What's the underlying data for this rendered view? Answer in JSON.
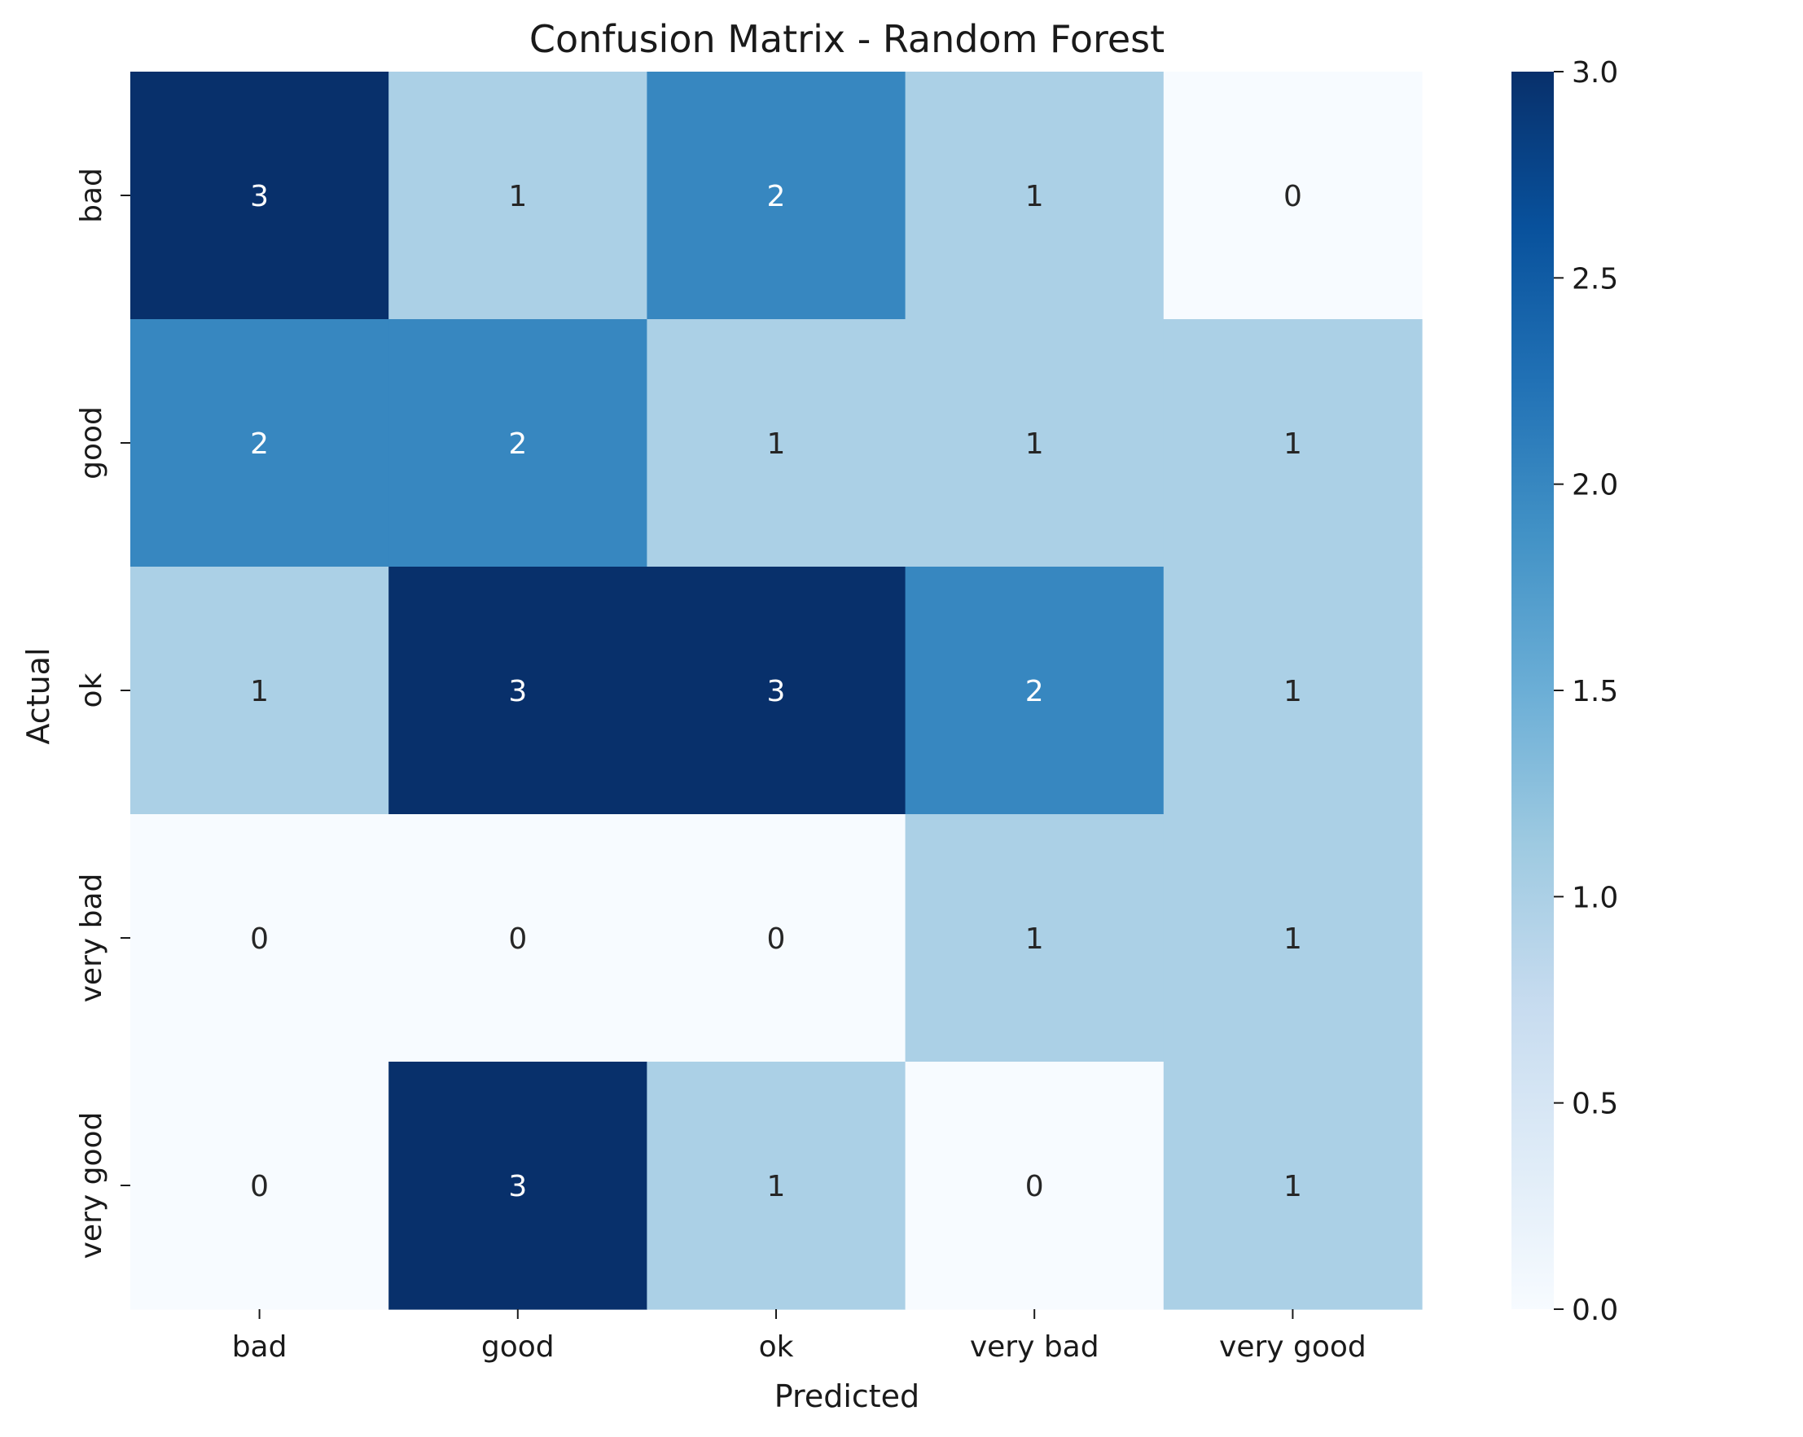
{
  "chart_data": {
    "type": "heatmap",
    "title": "Confusion Matrix - Random Forest",
    "xlabel": "Predicted",
    "ylabel": "Actual",
    "x_categories": [
      "bad",
      "good",
      "ok",
      "very bad",
      "very good"
    ],
    "y_categories": [
      "bad",
      "good",
      "ok",
      "very bad",
      "very good"
    ],
    "values": [
      [
        3,
        1,
        2,
        1,
        0
      ],
      [
        2,
        2,
        1,
        1,
        1
      ],
      [
        1,
        3,
        3,
        2,
        1
      ],
      [
        0,
        0,
        0,
        1,
        1
      ],
      [
        0,
        3,
        1,
        0,
        1
      ]
    ],
    "colormap": "Blues",
    "vmin": 0,
    "vmax": 3,
    "colorbar_ticks": [
      "0.0",
      "0.5",
      "1.0",
      "1.5",
      "2.0",
      "2.5",
      "3.0"
    ],
    "annotation_color_dark": "#262626",
    "annotation_color_light": "#ffffff"
  }
}
